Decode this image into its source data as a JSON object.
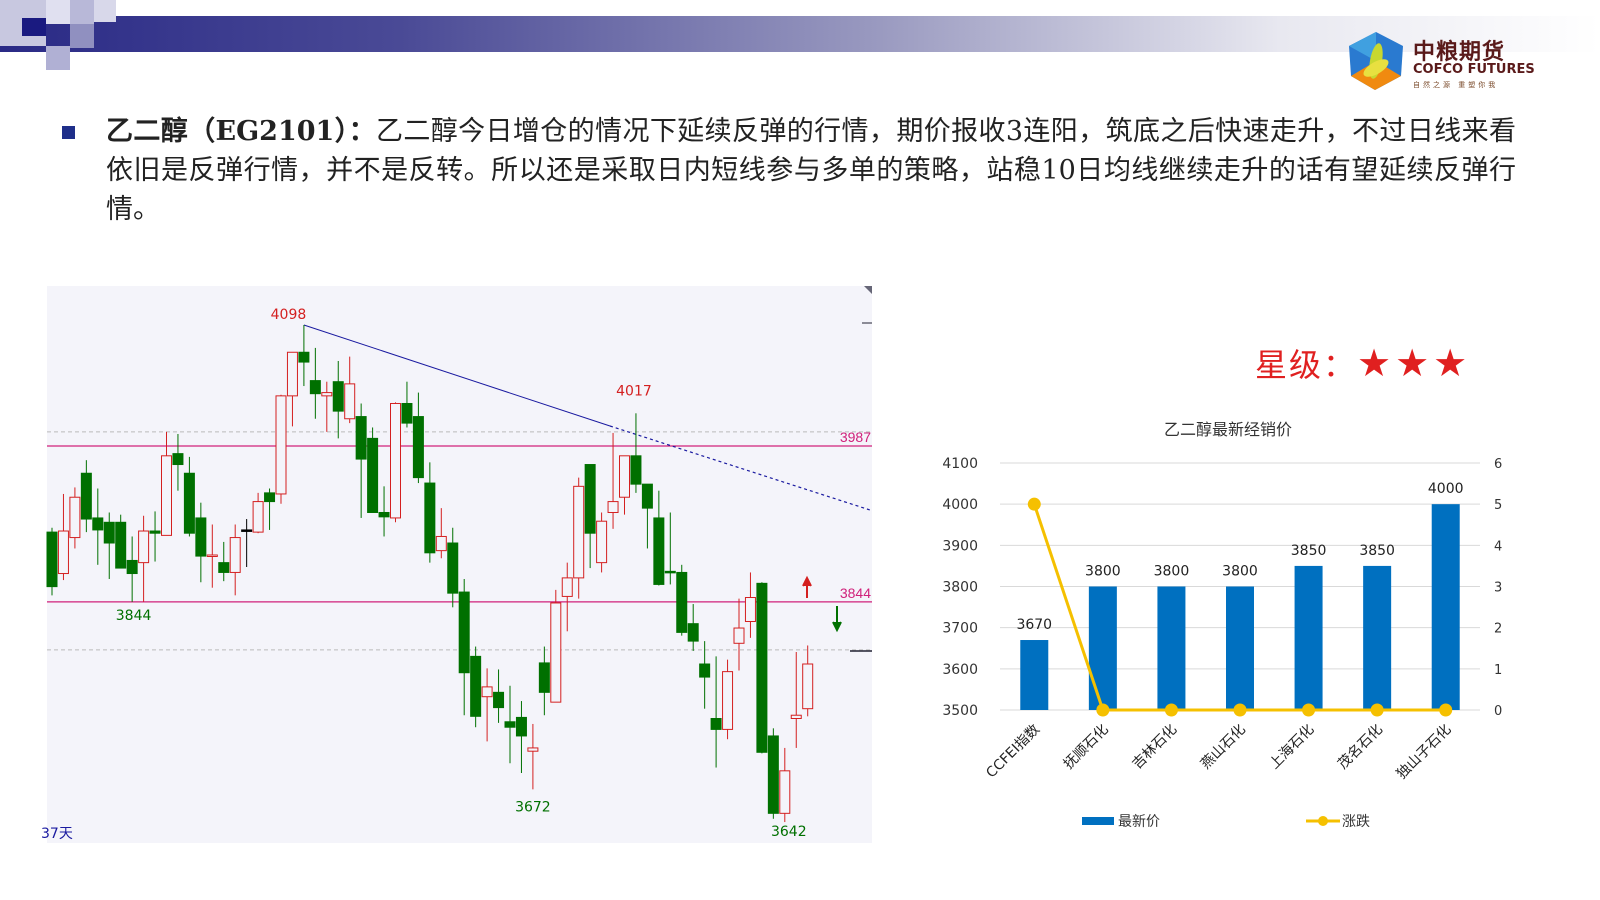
{
  "header": {
    "logo_cn": "中粮期货",
    "logo_en": "COFCO FUTURES",
    "logo_tagline": "自然之源 重塑你我"
  },
  "paragraph": {
    "lead": "乙二醇（EG2101）：",
    "body": "乙二醇今日增仓的情况下延续反弹的行情，期价报收3连阳，筑底之后快速走升，不过日线来看依旧是反弹行情，并不是反转。所以还是采取日内短线参与多单的策略，站稳10日均线继续走升的话有望延续反弹行情。"
  },
  "rating": {
    "label": "星级：",
    "stars": "★★★",
    "count": 3
  },
  "colors": {
    "up": "#d42020",
    "down": "#007000",
    "bar": "#0070c0",
    "line": "#f5c000",
    "level": "#d0207a",
    "trend": "#1a1aa0"
  },
  "chart_data": [
    {
      "type": "candlestick",
      "period_label": "37天",
      "annotations": {
        "high": "4098",
        "mid_high": "4017",
        "low1": "3844",
        "low2": "3672",
        "low3": "3642"
      },
      "levels": [
        {
          "value": 3987,
          "label": "3987"
        },
        {
          "value": 3844,
          "label": "3844"
        }
      ],
      "ohlc": [
        [
          3908,
          3858,
          3912,
          3850
        ],
        [
          3870,
          3909,
          3943,
          3864
        ],
        [
          3903,
          3940,
          3949,
          3893
        ],
        [
          3962,
          3920,
          3974,
          3908
        ],
        [
          3921,
          3910,
          3948,
          3878
        ],
        [
          3917,
          3898,
          3926,
          3865
        ],
        [
          3917,
          3875,
          3924,
          3875
        ],
        [
          3882,
          3870,
          3904,
          3844
        ],
        [
          3880,
          3909,
          3923,
          3844
        ],
        [
          3909,
          3907,
          3927,
          3881
        ],
        [
          3905,
          3978,
          4000,
          3905
        ],
        [
          3980,
          3970,
          3998,
          3946
        ],
        [
          3962,
          3907,
          3977,
          3904
        ],
        [
          3921,
          3886,
          3935,
          3862
        ],
        [
          3886,
          3887,
          3915,
          3857
        ],
        [
          3880,
          3871,
          3899,
          3863
        ],
        [
          3871,
          3903,
          3915,
          3850
        ],
        [
          3910,
          3910,
          3920,
          3876
        ],
        [
          3908,
          3936,
          3944,
          3907
        ],
        [
          3944,
          3936,
          3948,
          3910
        ],
        [
          3943,
          4033,
          4034,
          3934
        ],
        [
          4033,
          4073,
          4073,
          4005
        ],
        [
          4073,
          4064,
          4098,
          4042
        ],
        [
          4047,
          4035,
          4077,
          4012
        ],
        [
          4033,
          4036,
          4046,
          4000
        ],
        [
          4046,
          4019,
          4065,
          3994
        ],
        [
          4012,
          4044,
          4069,
          4008
        ],
        [
          4014,
          3975,
          4026,
          3921
        ],
        [
          3994,
          3926,
          4004,
          3926
        ],
        [
          3926,
          3922,
          3950,
          3904
        ],
        [
          3921,
          4026,
          4027,
          3917
        ],
        [
          4026,
          4008,
          4046,
          4004
        ],
        [
          4014,
          3958,
          4036,
          3953
        ],
        [
          3953,
          3889,
          3972,
          3880
        ],
        [
          3891,
          3904,
          3930,
          3884
        ],
        [
          3898,
          3852,
          3912,
          3839
        ],
        [
          3853,
          3779,
          3865,
          3740
        ],
        [
          3794,
          3739,
          3803,
          3729
        ],
        [
          3757,
          3766,
          3783,
          3716
        ],
        [
          3761,
          3747,
          3782,
          3733
        ],
        [
          3734,
          3729,
          3767,
          3696
        ],
        [
          3738,
          3721,
          3753,
          3687
        ],
        [
          3707,
          3710,
          3732,
          3672
        ],
        [
          3788,
          3761,
          3803,
          3740
        ],
        [
          3752,
          3843,
          3855,
          3752
        ],
        [
          3849,
          3866,
          3880,
          3817
        ],
        [
          3866,
          3950,
          3958,
          3847
        ],
        [
          3970,
          3907,
          3970,
          3875
        ],
        [
          3880,
          3918,
          3926,
          3871
        ],
        [
          3926,
          3936,
          3999,
          3911
        ],
        [
          3940,
          3978,
          3978,
          3924
        ],
        [
          3978,
          3952,
          4017,
          3944
        ],
        [
          3952,
          3930,
          3952,
          3893
        ],
        [
          3921,
          3860,
          3946,
          3859
        ],
        [
          3872,
          3871,
          3926,
          3860
        ],
        [
          3871,
          3816,
          3878,
          3813
        ],
        [
          3824,
          3808,
          3842,
          3799
        ],
        [
          3787,
          3775,
          3808,
          3746
        ],
        [
          3737,
          3727,
          3794,
          3692
        ],
        [
          3727,
          3780,
          3791,
          3718
        ],
        [
          3806,
          3820,
          3847,
          3781
        ],
        [
          3826,
          3848,
          3871,
          3811
        ],
        [
          3861,
          3706,
          3862,
          3705
        ],
        [
          3721,
          3650,
          3728,
          3645
        ],
        [
          3650,
          3689,
          3710,
          3642
        ],
        [
          3737,
          3740,
          3798,
          3710
        ],
        [
          3746,
          3787,
          3804,
          3739
        ]
      ]
    },
    {
      "type": "bar",
      "title": "乙二醇最新经销价",
      "categories": [
        "CCFEI指数",
        "抚顺石化",
        "吉林石化",
        "燕山石化",
        "上海石化",
        "茂名石化",
        "独山子石化"
      ],
      "series": [
        {
          "name": "最新价",
          "type": "bar",
          "axis": "left",
          "values": [
            3670,
            3800,
            3800,
            3800,
            3850,
            3850,
            4000
          ]
        },
        {
          "name": "涨跌",
          "type": "line",
          "axis": "right",
          "values": [
            5,
            0,
            0,
            0,
            0,
            0,
            0
          ]
        }
      ],
      "ylim": [
        3500,
        4100
      ],
      "yticks": [
        "3500",
        "3600",
        "3700",
        "3800",
        "3900",
        "4000",
        "4100"
      ],
      "y2lim": [
        0,
        6
      ],
      "y2ticks": [
        "0",
        "1",
        "2",
        "3",
        "4",
        "5",
        "6"
      ],
      "grid": true,
      "legend": "bottom"
    }
  ]
}
